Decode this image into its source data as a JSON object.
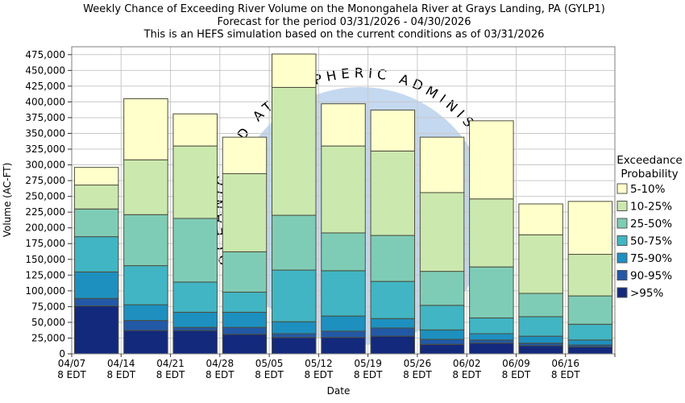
{
  "title": {
    "line1": "Weekly Chance of Exceeding River Volume on the Monongahela River at Grays Landing, PA (GYLP1)",
    "line2": "Forecast for the period 03/31/2026 - 04/30/2026",
    "line3": "This is an HEFS simulation based on the current conditions as of 03/31/2026"
  },
  "watermark": {
    "text": "OCEANIC AND ATMOSPHERIC ADMINISTRATION",
    "disc_color": "#c4d8ef",
    "text_color": "#a6c4e4"
  },
  "axes": {
    "y_title": "Volume (AC-FT)",
    "x_title": "Date",
    "x_sub_label": "8 EDT"
  },
  "legend": {
    "title_line1": "Exceedance",
    "title_line2": "Probability"
  },
  "chart_data": {
    "type": "bar",
    "stacked": true,
    "title": "Weekly Chance of Exceeding River Volume on the Monongahela River at Grays Landing, PA (GYLP1)",
    "xlabel": "Date",
    "ylabel": "Volume (AC-FT)",
    "ylim": [
      0,
      487500
    ],
    "y_tick_step": 25000,
    "y_tick_max": 475000,
    "grid": true,
    "legend_position": "right",
    "bands_bottom_to_top": [
      {
        "label": ">95%",
        "color": "#13297c"
      },
      {
        "label": "90-95%",
        "color": "#2259a6"
      },
      {
        "label": "75-90%",
        "color": "#1d90c0"
      },
      {
        "label": "50-75%",
        "color": "#41b5c3"
      },
      {
        "label": "25-50%",
        "color": "#7fccb6"
      },
      {
        "label": "10-25%",
        "color": "#cbe8ae"
      },
      {
        "label": "5-10%",
        "color": "#ffffcc"
      }
    ],
    "categories": [
      "04/07",
      "04/14",
      "04/21",
      "04/28",
      "05/05",
      "05/12",
      "05/19",
      "05/26",
      "06/02",
      "06/09",
      "06/16"
    ],
    "x_sub_label": "8 EDT",
    "bars": [
      {
        "date": "04/07",
        "time": "8 EDT",
        "cumulative_tops_ac_ft": [
          76000,
          88000,
          130000,
          186000,
          230000,
          268000,
          296000
        ]
      },
      {
        "date": "04/14",
        "time": "8 EDT",
        "cumulative_tops_ac_ft": [
          37000,
          53000,
          78000,
          140000,
          221000,
          308000,
          405000
        ]
      },
      {
        "date": "04/21",
        "time": "8 EDT",
        "cumulative_tops_ac_ft": [
          37000,
          42000,
          66000,
          114000,
          215000,
          330000,
          381000
        ]
      },
      {
        "date": "04/28",
        "time": "8 EDT",
        "cumulative_tops_ac_ft": [
          31000,
          42000,
          66000,
          98000,
          162000,
          286000,
          344000
        ]
      },
      {
        "date": "05/05",
        "time": "8 EDT",
        "cumulative_tops_ac_ft": [
          26000,
          32000,
          51000,
          133000,
          220000,
          423000,
          476000
        ]
      },
      {
        "date": "05/12",
        "time": "8 EDT",
        "cumulative_tops_ac_ft": [
          26000,
          36000,
          60000,
          132000,
          192000,
          330000,
          397000
        ]
      },
      {
        "date": "05/19",
        "time": "8 EDT",
        "cumulative_tops_ac_ft": [
          28000,
          41000,
          56000,
          115000,
          188000,
          322000,
          387000
        ]
      },
      {
        "date": "05/26",
        "time": "8 EDT",
        "cumulative_tops_ac_ft": [
          15000,
          23000,
          38000,
          77000,
          131000,
          256000,
          344000
        ]
      },
      {
        "date": "06/02",
        "time": "8 EDT",
        "cumulative_tops_ac_ft": [
          17000,
          22000,
          32000,
          57000,
          138000,
          246000,
          370000
        ]
      },
      {
        "date": "06/09",
        "time": "8 EDT",
        "cumulative_tops_ac_ft": [
          13000,
          17000,
          28000,
          59000,
          96000,
          189000,
          238000
        ]
      },
      {
        "date": "06/16",
        "time": "8 EDT",
        "cumulative_tops_ac_ft": [
          11000,
          14000,
          22000,
          47000,
          92000,
          158000,
          242000
        ]
      }
    ]
  },
  "colors": {
    "grid": "#c9c9c9",
    "plot_border": "#7f7f7f",
    "bar_outline": "#4e4e3c",
    "tick": "#333333"
  }
}
